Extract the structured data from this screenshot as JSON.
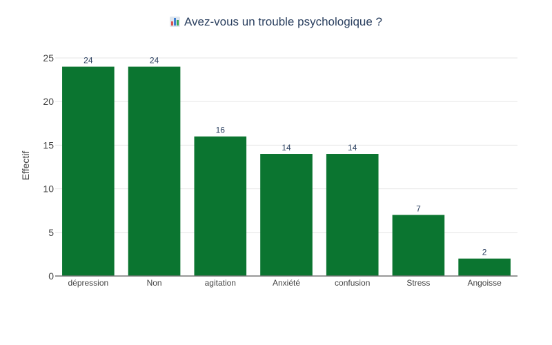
{
  "chart_data": {
    "type": "bar",
    "title": "Avez-vous un trouble psychologique ?",
    "title_icon": "bar-chart-icon",
    "ylabel": "Effectif",
    "xlabel": "",
    "categories": [
      "dépression",
      "Non",
      "agitation",
      "Anxiété",
      "confusion",
      "Stress",
      "Angoisse"
    ],
    "values": [
      24,
      24,
      16,
      14,
      14,
      7,
      2
    ],
    "ylim": [
      0,
      26.5
    ],
    "yticks": [
      0,
      5,
      10,
      15,
      20,
      25
    ],
    "grid": true,
    "legend": "none",
    "bar_color": "#0b7530",
    "data_labels": true
  }
}
